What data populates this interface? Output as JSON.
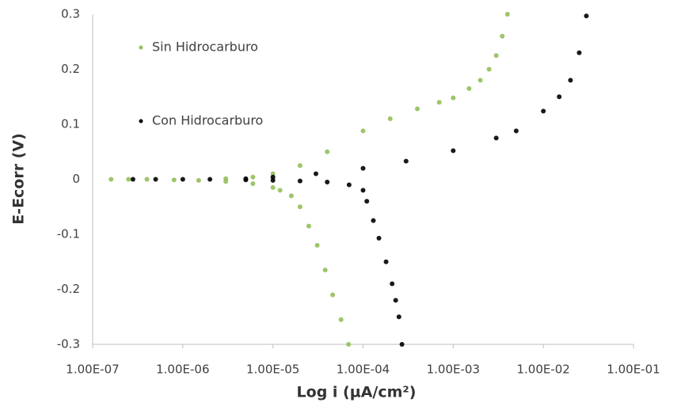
{
  "chart_data": {
    "type": "scatter",
    "x_label": "Log i (µA/cm²)",
    "y_label": "E-Ecorr (V)",
    "log_x": true,
    "xlim": [
      1e-07,
      0.1
    ],
    "xticks": [
      {
        "value": 1e-07,
        "label": "1.00E-07"
      },
      {
        "value": 1e-06,
        "label": "1.00E-06"
      },
      {
        "value": 1e-05,
        "label": "1.00E-05"
      },
      {
        "value": 0.0001,
        "label": "1.00E-04"
      },
      {
        "value": 0.001,
        "label": "1.00E-03"
      },
      {
        "value": 0.01,
        "label": "1.00E-02"
      },
      {
        "value": 0.1,
        "label": "1.00E-01"
      }
    ],
    "ylim": [
      -0.3,
      0.3
    ],
    "yticks": [
      0.3,
      0.2,
      0.1,
      0,
      -0.1,
      -0.2,
      -0.3
    ],
    "grid": false,
    "legend": "upper left",
    "series": [
      {
        "name": "Sin Hidrocarburo",
        "color": "#92c05a",
        "x": [
          6.9e-05,
          5.7e-05,
          4.6e-05,
          3.8e-05,
          3.1e-05,
          2.5e-05,
          2e-05,
          1.6e-05,
          1.2e-05,
          1e-05,
          6e-06,
          3e-06,
          1.5e-06,
          8e-07,
          4e-07,
          2.5e-07,
          1.6e-07,
          3e-06,
          6e-06,
          1e-05,
          2e-05,
          4e-05,
          0.0001,
          0.0002,
          0.0004,
          0.0007,
          0.001,
          0.0015,
          0.002,
          0.0025,
          0.003,
          0.0035,
          0.004
        ],
        "values": [
          -0.3,
          -0.255,
          -0.21,
          -0.165,
          -0.12,
          -0.085,
          -0.05,
          -0.03,
          -0.02,
          -0.015,
          -0.008,
          -0.004,
          -0.002,
          -0.001,
          0,
          0,
          0,
          0.001,
          0.004,
          0.01,
          0.025,
          0.05,
          0.088,
          0.11,
          0.128,
          0.14,
          0.148,
          0.165,
          0.18,
          0.2,
          0.225,
          0.26,
          0.3
        ]
      },
      {
        "name": "Con Hidrocarburo",
        "color": "#000000",
        "x": [
          0.00027,
          0.00025,
          0.00023,
          0.00021,
          0.00018,
          0.00015,
          0.00013,
          0.00011,
          0.0001,
          7e-05,
          4e-05,
          2e-05,
          1e-05,
          5e-06,
          2e-06,
          1e-06,
          5e-07,
          2.8e-07,
          5e-06,
          1e-05,
          3e-05,
          0.0001,
          0.0003,
          0.001,
          0.003,
          0.005,
          0.01,
          0.015,
          0.02,
          0.025,
          0.03
        ],
        "values": [
          -0.3,
          -0.25,
          -0.22,
          -0.19,
          -0.15,
          -0.107,
          -0.075,
          -0.04,
          -0.02,
          -0.01,
          -0.005,
          -0.003,
          -0.002,
          -0.001,
          0,
          0,
          0,
          0,
          0.001,
          0.004,
          0.01,
          0.02,
          0.033,
          0.052,
          0.075,
          0.088,
          0.124,
          0.15,
          0.18,
          0.23,
          0.297
        ]
      }
    ]
  }
}
